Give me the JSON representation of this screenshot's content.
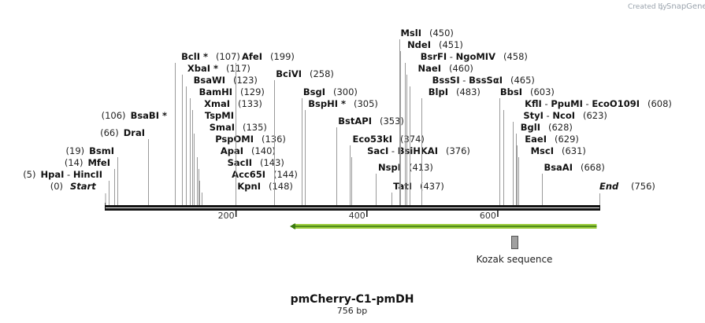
{
  "credit": {
    "prefix": "Created by",
    "app": "SnapGene"
  },
  "map": {
    "name": "pmCherry-C1-pmDH",
    "length_label": "756 bp",
    "length": 756,
    "backbone_color": "#111111",
    "start": {
      "label": "Start",
      "pos_text": "(0)",
      "pos": 0
    },
    "end": {
      "label": "End",
      "pos_text": "(756)",
      "pos": 756
    }
  },
  "ticks": [
    {
      "value": 200,
      "label": "200"
    },
    {
      "value": 400,
      "label": "400"
    },
    {
      "value": 600,
      "label": "600"
    }
  ],
  "features": [
    {
      "name": "arrow",
      "from": 756,
      "to": 133,
      "direction": "reverse",
      "fill": "#9ccc3c",
      "stroke": "#3a7a10",
      "label": ""
    },
    {
      "name": "kozak",
      "from": 625,
      "to": 635,
      "direction": "none",
      "fill": "#a0a0a0",
      "stroke": "#555555",
      "label": "Kozak sequence"
    }
  ],
  "sites": [
    {
      "parts": [
        {
          "t": "HpaI",
          "s": "enz"
        },
        {
          "t": " - ",
          "s": "sep"
        },
        {
          "t": "HincII",
          "s": "enz"
        }
      ],
      "pos_text": "(5)",
      "pos": 5
    },
    {
      "parts": [
        {
          "t": "MfeI",
          "s": "enz"
        }
      ],
      "pos_text": "(14)",
      "pos": 14
    },
    {
      "parts": [
        {
          "t": "BsmI",
          "s": "enz"
        }
      ],
      "pos_text": "(19)",
      "pos": 19
    },
    {
      "parts": [
        {
          "t": "DraI",
          "s": "enz"
        }
      ],
      "pos_text": "(66)",
      "pos": 66
    },
    {
      "parts": [
        {
          "t": "BsaBI *",
          "s": "enz"
        }
      ],
      "pos_text": "(106)",
      "pos": 106
    },
    {
      "parts": [
        {
          "t": "BclI *",
          "s": "enz"
        }
      ],
      "pos_text": "(107)",
      "pos": 107
    },
    {
      "parts": [
        {
          "t": "XbaI *",
          "s": "enz"
        }
      ],
      "pos_text": "(117)",
      "pos": 117
    },
    {
      "parts": [
        {
          "t": "BsaWI",
          "s": "enz"
        }
      ],
      "pos_text": "(123)",
      "pos": 123
    },
    {
      "parts": [
        {
          "t": "BamHI",
          "s": "enz"
        }
      ],
      "pos_text": "(129)",
      "pos": 129
    },
    {
      "parts": [
        {
          "t": "XmaI",
          "s": "enz"
        }
      ],
      "pos_text": "(133)",
      "pos": 133
    },
    {
      "parts": [
        {
          "t": "TspMI",
          "s": "enz"
        }
      ],
      "pos_text": "",
      "pos": 133
    },
    {
      "parts": [
        {
          "t": "SmaI",
          "s": "enz"
        }
      ],
      "pos_text": "(135)",
      "pos": 135
    },
    {
      "parts": [
        {
          "t": "PspOMI",
          "s": "enz"
        }
      ],
      "pos_text": "(136)",
      "pos": 136
    },
    {
      "parts": [
        {
          "t": "ApaI",
          "s": "enz"
        }
      ],
      "pos_text": "(140)",
      "pos": 140
    },
    {
      "parts": [
        {
          "t": "SacII",
          "s": "enz"
        }
      ],
      "pos_text": "(143)",
      "pos": 143
    },
    {
      "parts": [
        {
          "t": "Acc65I",
          "s": "enz"
        }
      ],
      "pos_text": "(144)",
      "pos": 144
    },
    {
      "parts": [
        {
          "t": "KpnI",
          "s": "enz"
        }
      ],
      "pos_text": "(148)",
      "pos": 148
    },
    {
      "parts": [
        {
          "t": "AfeI",
          "s": "enz"
        }
      ],
      "pos_text": "(199)",
      "pos": 199
    },
    {
      "parts": [
        {
          "t": "BciVI",
          "s": "enz"
        }
      ],
      "pos_text": "(258)",
      "pos": 258
    },
    {
      "parts": [
        {
          "t": "BsgI",
          "s": "enz"
        }
      ],
      "pos_text": "(300)",
      "pos": 300
    },
    {
      "parts": [
        {
          "t": "BspHI *",
          "s": "enz"
        }
      ],
      "pos_text": "(305)",
      "pos": 305
    },
    {
      "parts": [
        {
          "t": "BstAPI",
          "s": "enz"
        }
      ],
      "pos_text": "(353)",
      "pos": 353
    },
    {
      "parts": [
        {
          "t": "Eco53kI",
          "s": "enz"
        }
      ],
      "pos_text": "(374)",
      "pos": 374
    },
    {
      "parts": [
        {
          "t": "SacI",
          "s": "enz"
        },
        {
          "t": " - ",
          "s": "sep"
        },
        {
          "t": "BsiHKAI",
          "s": "enz"
        }
      ],
      "pos_text": "(376)",
      "pos": 376
    },
    {
      "parts": [
        {
          "t": "NspI",
          "s": "enz"
        }
      ],
      "pos_text": "(413)",
      "pos": 413
    },
    {
      "parts": [
        {
          "t": "TatI",
          "s": "enz"
        }
      ],
      "pos_text": "(437)",
      "pos": 437
    },
    {
      "parts": [
        {
          "t": "MslI",
          "s": "enz"
        }
      ],
      "pos_text": "(450)",
      "pos": 450
    },
    {
      "parts": [
        {
          "t": "NdeI",
          "s": "enz"
        }
      ],
      "pos_text": "(451)",
      "pos": 451
    },
    {
      "parts": [
        {
          "t": "BsrFI",
          "s": "enz"
        },
        {
          "t": " - ",
          "s": "sep"
        },
        {
          "t": "NgoMIV",
          "s": "enz"
        }
      ],
      "pos_text": "(458)",
      "pos": 458
    },
    {
      "parts": [
        {
          "t": "NaeI",
          "s": "enz"
        }
      ],
      "pos_text": "(460)",
      "pos": 460
    },
    {
      "parts": [
        {
          "t": "BssSI",
          "s": "enz"
        },
        {
          "t": " - ",
          "s": "sep"
        },
        {
          "t": "BssSαI",
          "s": "enz"
        }
      ],
      "pos_text": "(465)",
      "pos": 465
    },
    {
      "parts": [
        {
          "t": "BlpI",
          "s": "enz"
        }
      ],
      "pos_text": "(483)",
      "pos": 483
    },
    {
      "parts": [
        {
          "t": "BbsI",
          "s": "enz"
        }
      ],
      "pos_text": "(603)",
      "pos": 603
    },
    {
      "parts": [
        {
          "t": "KflI",
          "s": "enz"
        },
        {
          "t": " - ",
          "s": "sep"
        },
        {
          "t": "PpuMI",
          "s": "enz"
        },
        {
          "t": " - ",
          "s": "sep"
        },
        {
          "t": "EcoO109I",
          "s": "enz"
        }
      ],
      "pos_text": "(608)",
      "pos": 608
    },
    {
      "parts": [
        {
          "t": "StyI",
          "s": "enz"
        },
        {
          "t": " - ",
          "s": "sep"
        },
        {
          "t": "NcoI",
          "s": "enz"
        }
      ],
      "pos_text": "(623)",
      "pos": 623
    },
    {
      "parts": [
        {
          "t": "BglI",
          "s": "enz"
        }
      ],
      "pos_text": "(628)",
      "pos": 628
    },
    {
      "parts": [
        {
          "t": "EaeI",
          "s": "enz"
        }
      ],
      "pos_text": "(629)",
      "pos": 629
    },
    {
      "parts": [
        {
          "t": "MscI",
          "s": "enz"
        }
      ],
      "pos_text": "(631)",
      "pos": 631
    },
    {
      "parts": [
        {
          "t": "BsaAI",
          "s": "enz"
        }
      ],
      "pos_text": "(668)",
      "pos": 668
    }
  ]
}
